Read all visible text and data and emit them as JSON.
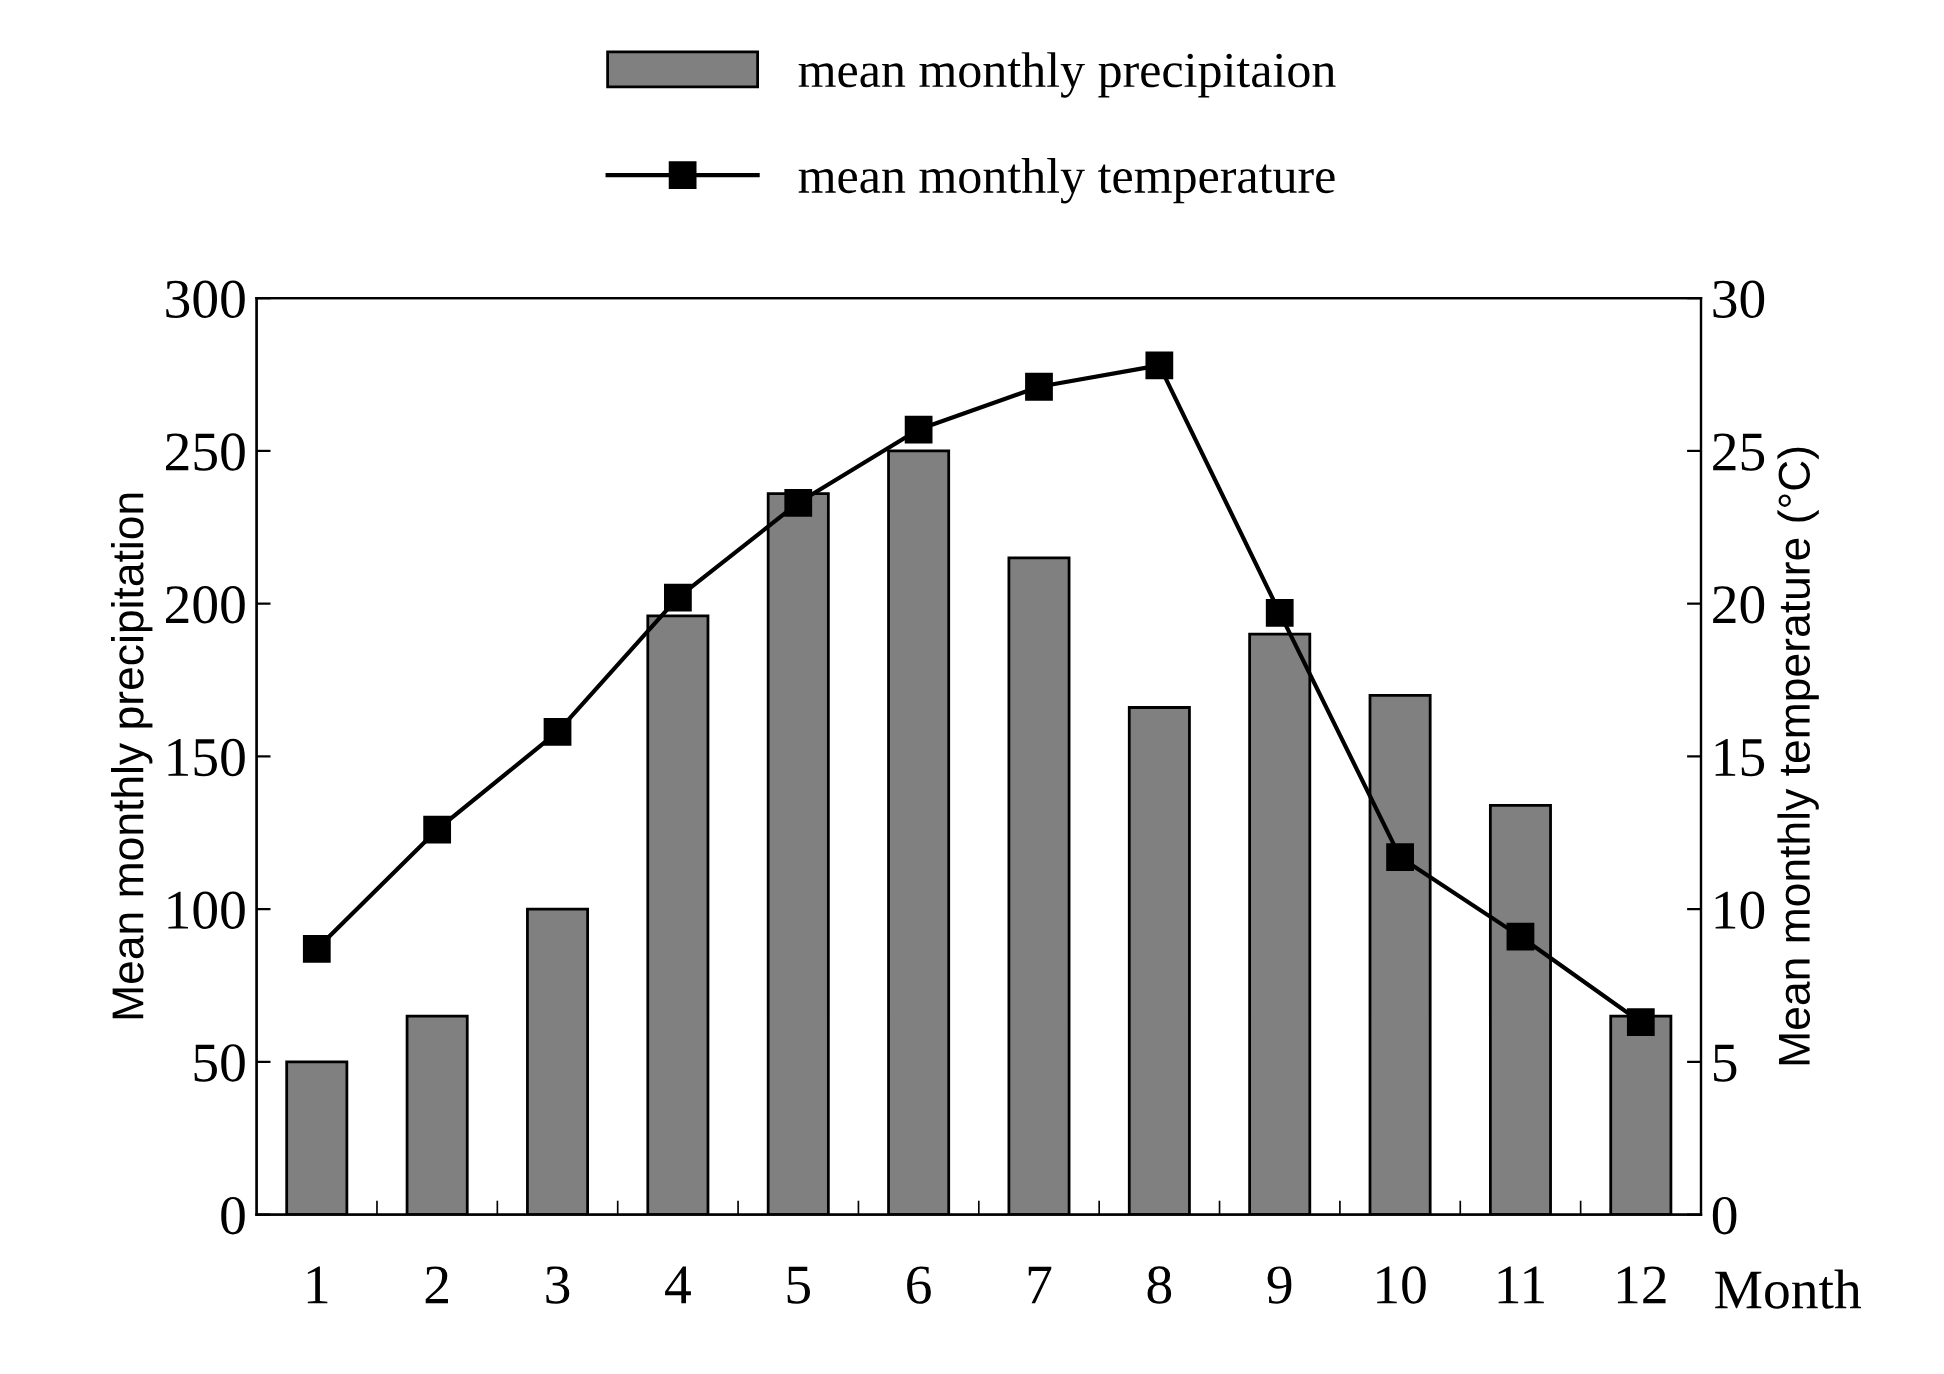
{
  "chart_data": {
    "type": "bar",
    "xlabel": "Month",
    "ylabel": "Mean monthly precipitation",
    "y2label": "Mean monthly temperature (°C)",
    "categories": [
      "1",
      "2",
      "3",
      "4",
      "5",
      "6",
      "7",
      "8",
      "9",
      "10",
      "11",
      "12"
    ],
    "series": [
      {
        "name": "mean monthly precipitaion",
        "color": "#808080",
        "values": [
          50,
          65,
          100,
          196,
          236,
          250,
          215,
          166,
          190,
          170,
          134,
          65
        ]
      },
      {
        "name": "mean monthly temperature",
        "type": "line",
        "axis": "y2",
        "color": "#000000",
        "marker": "square",
        "line_style": "solid",
        "values": [
          8.7,
          12.6,
          15.8,
          20.2,
          23.3,
          25.7,
          27.1,
          27.8,
          19.7,
          11.7,
          9.1,
          6.3
        ]
      }
    ],
    "ylim": [
      0,
      300
    ],
    "yticks": [
      0,
      50,
      100,
      150,
      200,
      250,
      300
    ],
    "y2lim": [
      0,
      30
    ],
    "y2ticks": [
      0,
      5,
      10,
      15,
      20,
      25,
      30
    ],
    "grid": false,
    "legend": "top"
  }
}
